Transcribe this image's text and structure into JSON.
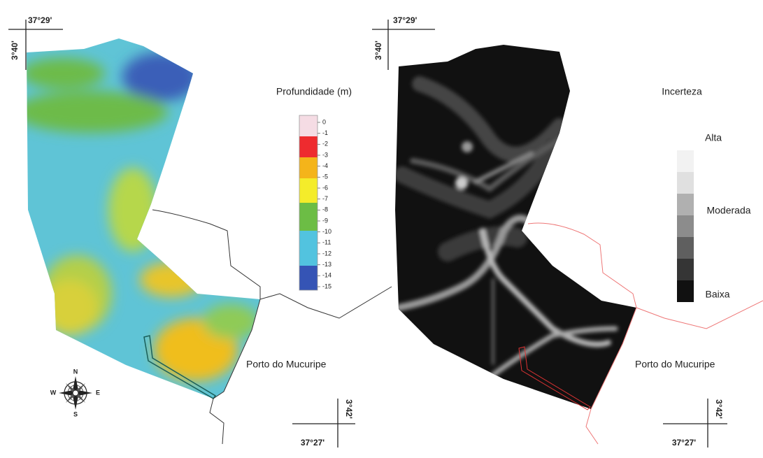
{
  "depth_map": {
    "lon_top": "37°29'",
    "lat_top": "3°40'",
    "lon_bottom": "37°27'",
    "lat_bottom": "3°42'",
    "legend_title": "Profundidade (m)",
    "legend_labels": [
      "0",
      "-1",
      "-2",
      "-3",
      "-4",
      "-5",
      "-6",
      "-7",
      "-8",
      "-9",
      "-10",
      "-11",
      "-12",
      "-13",
      "-14",
      "-15"
    ],
    "port_label": "Porto do Mucuripe"
  },
  "compass": {
    "north": "N",
    "south": "S",
    "east": "E",
    "west": "W"
  },
  "uncertainty_map": {
    "lon_top": "37°29'",
    "lat_top": "3°40'",
    "lon_bottom": "37°27'",
    "lat_bottom": "3°42'",
    "legend_title": "Incerteza",
    "legend_high": "Alta",
    "legend_mid": "Moderada",
    "legend_low": "Baixa",
    "port_label": "Porto do Mucuripe"
  }
}
